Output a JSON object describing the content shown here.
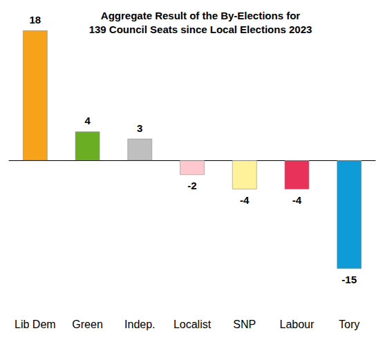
{
  "chart_data": {
    "type": "bar",
    "title": "Aggregate Result of the By-Elections for\n139 Council Seats since Local Elections 2023",
    "categories": [
      "Lib Dem",
      "Green",
      "Indep.",
      "Localist",
      "SNP",
      "Labour",
      "Tory"
    ],
    "values": [
      18,
      4,
      3,
      -2,
      -4,
      -4,
      -15
    ],
    "colors": [
      "#f7a21b",
      "#6aaf23",
      "#bfbfbf",
      "#ffc7ce",
      "#fff29a",
      "#e8325a",
      "#0f9bd7"
    ],
    "ylim": [
      -15,
      18
    ],
    "grid": false,
    "data_labels": true,
    "tick_labels": "x"
  }
}
